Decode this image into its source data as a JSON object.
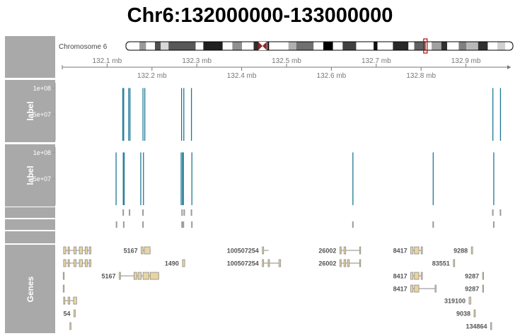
{
  "title": "Chr6:132000000-133000000",
  "panels": [
    {
      "label": ""
    },
    {
      "label": "label"
    },
    {
      "label": "label"
    },
    {
      "label": ""
    },
    {
      "label": ""
    },
    {
      "label": ""
    },
    {
      "label": "Genes"
    }
  ],
  "chart_data": {
    "type": "genome-tracks",
    "chromosome_label": "Chromosome 6",
    "region": {
      "start": 132000000,
      "end": 133000000,
      "unit": "bp"
    },
    "upper_axis_ticks": [
      "132.1 mb",
      "132.3 mb",
      "132.5 mb",
      "132.7 mb",
      "132.9 mb"
    ],
    "lower_axis_ticks": [
      "132.2 mb",
      "132.4 mb",
      "132.6 mb",
      "132.8 mb"
    ],
    "upper_tick_values": [
      132.1,
      132.3,
      132.5,
      132.7,
      132.9
    ],
    "lower_tick_values": [
      132.2,
      132.4,
      132.6,
      132.8
    ],
    "ideogram_highlight_fraction": 0.773,
    "colors": {
      "data": "#1b7895",
      "panel": "#a9a9a9",
      "exon": "#e8d5a0",
      "mark": "#9a9a9a",
      "highlight": "#cc0000"
    },
    "tracks": [
      {
        "yticks": [
          "1e+08",
          "5e+07"
        ],
        "yvalues": [
          100000000,
          50000000
        ],
        "ylim": [
          0,
          110000000
        ],
        "bars": [
          {
            "pos": 132.135,
            "value": 100000000
          },
          {
            "pos": 132.137,
            "value": 100000000
          },
          {
            "pos": 132.148,
            "value": 100000000
          },
          {
            "pos": 132.151,
            "value": 100000000
          },
          {
            "pos": 132.18,
            "value": 100000000
          },
          {
            "pos": 132.184,
            "value": 100000000
          },
          {
            "pos": 132.266,
            "value": 100000000
          },
          {
            "pos": 132.271,
            "value": 100000000
          },
          {
            "pos": 132.288,
            "value": 100000000
          },
          {
            "pos": 132.96,
            "value": 100000000
          },
          {
            "pos": 132.977,
            "value": 100000000
          }
        ]
      },
      {
        "yticks": [
          "1e+08",
          "5e+07"
        ],
        "yvalues": [
          100000000,
          50000000
        ],
        "ylim": [
          0,
          110000000
        ],
        "bars": [
          {
            "pos": 132.12,
            "value": 100000000
          },
          {
            "pos": 132.136,
            "value": 100000000
          },
          {
            "pos": 132.138,
            "value": 100000000
          },
          {
            "pos": 132.175,
            "value": 100000000
          },
          {
            "pos": 132.181,
            "value": 100000000
          },
          {
            "pos": 132.265,
            "value": 100000000
          },
          {
            "pos": 132.268,
            "value": 100000000
          },
          {
            "pos": 132.27,
            "value": 100000000
          },
          {
            "pos": 132.289,
            "value": 100000000
          },
          {
            "pos": 132.648,
            "value": 100000000
          },
          {
            "pos": 132.827,
            "value": 100000000
          },
          {
            "pos": 132.962,
            "value": 100000000
          }
        ]
      }
    ],
    "mark_tracks": [
      {
        "positions": [
          132.136,
          132.15,
          132.18,
          132.267,
          132.272,
          132.288,
          132.96,
          132.977
        ]
      },
      {
        "positions": [
          132.121,
          132.137,
          132.18,
          132.267,
          132.27,
          132.289,
          132.648,
          132.827,
          132.962
        ]
      }
    ],
    "genes": [
      {
        "row": 0,
        "start": 132.003,
        "end": 132.065,
        "label": "",
        "exons": [
          [
            132.003,
            132.008
          ],
          [
            132.013,
            132.016
          ],
          [
            132.026,
            132.031
          ],
          [
            132.038,
            132.045
          ],
          [
            132.051,
            132.056
          ],
          [
            132.06,
            132.064
          ]
        ]
      },
      {
        "row": 0,
        "start": 132.176,
        "end": 132.197,
        "label": "5167",
        "exons": [
          [
            132.176,
            132.18
          ],
          [
            132.183,
            132.196
          ]
        ]
      },
      {
        "row": 0,
        "start": 132.446,
        "end": 132.46,
        "label": "100507254",
        "exons": [
          [
            132.446,
            132.449
          ]
        ]
      },
      {
        "row": 0,
        "start": 132.619,
        "end": 132.665,
        "label": "26002",
        "exons": [
          [
            132.619,
            132.622
          ],
          [
            132.628,
            132.632
          ],
          [
            132.663,
            132.665
          ]
        ]
      },
      {
        "row": 0,
        "start": 132.777,
        "end": 132.803,
        "label": "8417",
        "exons": [
          [
            132.777,
            132.782
          ],
          [
            132.785,
            132.795
          ],
          [
            132.8,
            132.803
          ]
        ]
      },
      {
        "row": 0,
        "start": 132.912,
        "end": 132.915,
        "label": "9288",
        "exons": [
          [
            132.912,
            132.915
          ]
        ]
      },
      {
        "row": 1,
        "start": 132.003,
        "end": 132.065,
        "label": "",
        "exons": [
          [
            132.003,
            132.008
          ],
          [
            132.013,
            132.016
          ],
          [
            132.026,
            132.031
          ],
          [
            132.038,
            132.045
          ],
          [
            132.051,
            132.056
          ],
          [
            132.06,
            132.064
          ]
        ]
      },
      {
        "row": 1,
        "start": 132.268,
        "end": 132.273,
        "label": "1490",
        "exons": [
          [
            132.268,
            132.273
          ]
        ]
      },
      {
        "row": 1,
        "start": 132.446,
        "end": 132.487,
        "label": "100507254",
        "exons": [
          [
            132.446,
            132.449
          ],
          [
            132.459,
            132.462
          ],
          [
            132.483,
            132.487
          ]
        ]
      },
      {
        "row": 1,
        "start": 132.619,
        "end": 132.665,
        "label": "26002",
        "exons": [
          [
            132.619,
            132.622
          ],
          [
            132.628,
            132.632
          ],
          [
            132.636,
            132.64
          ],
          [
            132.663,
            132.665
          ]
        ]
      },
      {
        "row": 1,
        "start": 132.872,
        "end": 132.875,
        "label": "83551",
        "exons": [
          [
            132.872,
            132.875
          ]
        ]
      },
      {
        "row": 2,
        "start": 132.002,
        "end": 132.004,
        "label": "",
        "exons": [
          [
            132.002,
            132.004
          ]
        ]
      },
      {
        "row": 2,
        "start": 132.127,
        "end": 132.216,
        "label": "5167",
        "exons": [
          [
            132.127,
            132.13
          ],
          [
            132.16,
            132.166
          ],
          [
            132.169,
            132.176
          ],
          [
            132.18,
            132.193
          ],
          [
            132.196,
            132.215
          ]
        ]
      },
      {
        "row": 2,
        "start": 132.777,
        "end": 132.803,
        "label": "8417",
        "exons": [
          [
            132.777,
            132.782
          ],
          [
            132.785,
            132.795
          ],
          [
            132.8,
            132.803
          ]
        ]
      },
      {
        "row": 2,
        "start": 132.937,
        "end": 132.939,
        "label": "9287",
        "exons": [
          [
            132.937,
            132.939
          ]
        ]
      },
      {
        "row": 3,
        "start": 132.002,
        "end": 132.004,
        "label": "",
        "exons": [
          [
            132.002,
            132.004
          ]
        ]
      },
      {
        "row": 3,
        "start": 132.777,
        "end": 132.833,
        "label": "8417",
        "exons": [
          [
            132.777,
            132.782
          ],
          [
            132.785,
            132.795
          ],
          [
            132.831,
            132.833
          ]
        ]
      },
      {
        "row": 3,
        "start": 132.937,
        "end": 132.939,
        "label": "9287",
        "exons": [
          [
            132.937,
            132.939
          ]
        ]
      },
      {
        "row": 4,
        "start": 132.003,
        "end": 132.032,
        "label": "",
        "exons": [
          [
            132.003,
            132.006
          ],
          [
            132.013,
            132.017
          ],
          [
            132.025,
            132.032
          ]
        ]
      },
      {
        "row": 4,
        "start": 132.907,
        "end": 132.911,
        "label": "319100",
        "exons": [
          [
            132.907,
            132.911
          ]
        ]
      },
      {
        "row": 5,
        "start": 132.026,
        "end": 132.029,
        "label": "54",
        "exons": [
          [
            132.026,
            132.029
          ]
        ]
      },
      {
        "row": 5,
        "start": 132.918,
        "end": 132.921,
        "label": "9038",
        "exons": [
          [
            132.918,
            132.921
          ]
        ]
      },
      {
        "row": 6,
        "start": 132.017,
        "end": 132.019,
        "label": "",
        "exons": [
          [
            132.017,
            132.019
          ]
        ]
      },
      {
        "row": 6,
        "start": 132.955,
        "end": 132.957,
        "label": "134864",
        "exons": [
          [
            132.955,
            132.957
          ]
        ]
      }
    ]
  }
}
